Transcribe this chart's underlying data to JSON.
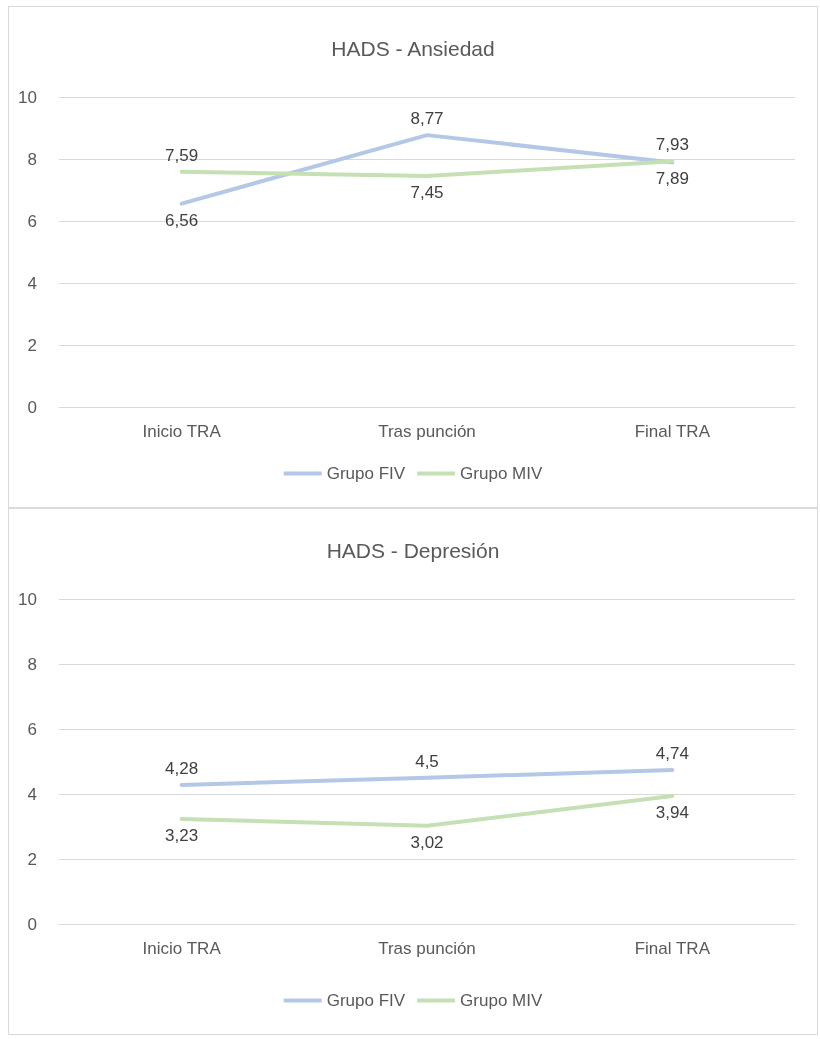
{
  "chart_data": [
    {
      "type": "line",
      "title": "HADS - Ansiedad",
      "categories": [
        "Inicio TRA",
        "Tras punción",
        "Final TRA"
      ],
      "series": [
        {
          "name": "Grupo FIV",
          "color": "#b4c7e7",
          "values": [
            6.56,
            8.77,
            7.89
          ],
          "value_labels": [
            "6,56",
            "8,77",
            "7,89"
          ]
        },
        {
          "name": "Grupo MIV",
          "color": "#c5e0b4",
          "values": [
            7.59,
            7.45,
            7.93
          ],
          "value_labels": [
            "7,59",
            "7,45",
            "7,93"
          ]
        }
      ],
      "ylim": [
        0,
        10
      ],
      "yticks": [
        0,
        2,
        4,
        6,
        8,
        10
      ],
      "grid": "y",
      "legend": "bottom",
      "marker": "none"
    },
    {
      "type": "line",
      "title": "HADS - Depresión",
      "categories": [
        "Inicio TRA",
        "Tras punción",
        "Final TRA"
      ],
      "series": [
        {
          "name": "Grupo FIV",
          "color": "#b4c7e7",
          "values": [
            4.28,
            4.5,
            4.74
          ],
          "value_labels": [
            "4,28",
            "4,5",
            "4,74"
          ]
        },
        {
          "name": "Grupo MIV",
          "color": "#c5e0b4",
          "values": [
            3.23,
            3.02,
            3.94
          ],
          "value_labels": [
            "3,23",
            "3,02",
            "3,94"
          ]
        }
      ],
      "ylim": [
        0,
        10
      ],
      "yticks": [
        0,
        2,
        4,
        6,
        8,
        10
      ],
      "grid": "y",
      "legend": "bottom",
      "marker": "none"
    }
  ]
}
